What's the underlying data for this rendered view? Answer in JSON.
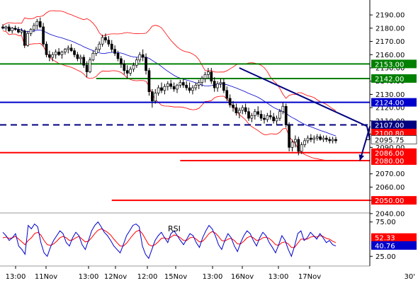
{
  "chart_data": {
    "type": "candlestick",
    "timeframe_label": "30'",
    "price_axis": {
      "ylim": [
        2041,
        2197
      ],
      "ticks": [
        2190,
        2180,
        2170,
        2160,
        2150,
        2140,
        2130,
        2120,
        2110,
        2100,
        2090,
        2070,
        2060,
        2050,
        2040
      ]
    },
    "x_axis_labels": [
      "13:00",
      "11Nov",
      "13:00",
      "12Nov",
      "12:00",
      "15Nov",
      "13:00",
      "16Nov",
      "13:00",
      "17Nov"
    ],
    "levels": [
      {
        "value": 2153.0,
        "label": "2153.00",
        "color": "#008000",
        "style": "solid",
        "from_index": 0
      },
      {
        "value": 2142.0,
        "label": "2142.00",
        "color": "#008000",
        "style": "solid",
        "from_index": 30
      },
      {
        "value": 2124.0,
        "label": "2124.00",
        "color": "#0000cc",
        "style": "solid",
        "from_index": 0
      },
      {
        "value": 2107.0,
        "label": "2107.00",
        "color": "#000080",
        "style": "dashed",
        "from_index": 0
      },
      {
        "value": 2086.0,
        "label": "2086.00",
        "color": "#ff0000",
        "style": "solid",
        "from_index": 0
      },
      {
        "value": 2080.0,
        "label": "2080.00",
        "color": "#ff0000",
        "style": "solid",
        "from_index": 57
      },
      {
        "value": 2050.0,
        "label": "2050.00",
        "color": "#ff0000",
        "style": "solid",
        "from_index": 35
      }
    ],
    "last_price": {
      "value": 2095.75,
      "label": "2095.75"
    },
    "upper_band_label": {
      "value": 2100.8,
      "label": "2100.80"
    },
    "trendline": {
      "from": [
        76,
        2150
      ],
      "to": [
        117,
        2106
      ],
      "color": "#000080"
    },
    "trendline_extension": {
      "from": [
        117,
        2106
      ],
      "to": [
        127,
        2096
      ],
      "color": "#000080"
    },
    "forecast_arrow": {
      "from": [
        118,
        2106
      ],
      "to": [
        125,
        2080
      ],
      "color": "#000080"
    },
    "candles": [
      {
        "o": 2181,
        "h": 2183,
        "l": 2179,
        "c": 2180
      },
      {
        "o": 2180,
        "h": 2182,
        "l": 2178,
        "c": 2181
      },
      {
        "o": 2181,
        "h": 2183,
        "l": 2177,
        "c": 2178
      },
      {
        "o": 2178,
        "h": 2181,
        "l": 2176,
        "c": 2180
      },
      {
        "o": 2180,
        "h": 2182,
        "l": 2178,
        "c": 2179
      },
      {
        "o": 2179,
        "h": 2181,
        "l": 2176,
        "c": 2177
      },
      {
        "o": 2177,
        "h": 2180,
        "l": 2175,
        "c": 2178
      },
      {
        "o": 2178,
        "h": 2179,
        "l": 2165,
        "c": 2167
      },
      {
        "o": 2167,
        "h": 2178,
        "l": 2166,
        "c": 2176
      },
      {
        "o": 2176,
        "h": 2180,
        "l": 2174,
        "c": 2179
      },
      {
        "o": 2179,
        "h": 2184,
        "l": 2177,
        "c": 2182
      },
      {
        "o": 2182,
        "h": 2187,
        "l": 2179,
        "c": 2185
      },
      {
        "o": 2185,
        "h": 2188,
        "l": 2180,
        "c": 2181
      },
      {
        "o": 2181,
        "h": 2184,
        "l": 2166,
        "c": 2168
      },
      {
        "o": 2168,
        "h": 2170,
        "l": 2158,
        "c": 2160
      },
      {
        "o": 2160,
        "h": 2163,
        "l": 2155,
        "c": 2158
      },
      {
        "o": 2158,
        "h": 2162,
        "l": 2155,
        "c": 2160
      },
      {
        "o": 2160,
        "h": 2164,
        "l": 2157,
        "c": 2162
      },
      {
        "o": 2162,
        "h": 2165,
        "l": 2159,
        "c": 2160
      },
      {
        "o": 2160,
        "h": 2163,
        "l": 2157,
        "c": 2162
      },
      {
        "o": 2162,
        "h": 2165,
        "l": 2160,
        "c": 2164
      },
      {
        "o": 2164,
        "h": 2167,
        "l": 2161,
        "c": 2165
      },
      {
        "o": 2165,
        "h": 2168,
        "l": 2162,
        "c": 2163
      },
      {
        "o": 2163,
        "h": 2165,
        "l": 2158,
        "c": 2160
      },
      {
        "o": 2160,
        "h": 2162,
        "l": 2155,
        "c": 2157
      },
      {
        "o": 2157,
        "h": 2160,
        "l": 2153,
        "c": 2158
      },
      {
        "o": 2158,
        "h": 2160,
        "l": 2150,
        "c": 2152
      },
      {
        "o": 2152,
        "h": 2155,
        "l": 2143,
        "c": 2147
      },
      {
        "o": 2147,
        "h": 2158,
        "l": 2146,
        "c": 2156
      },
      {
        "o": 2156,
        "h": 2163,
        "l": 2155,
        "c": 2161
      },
      {
        "o": 2161,
        "h": 2166,
        "l": 2159,
        "c": 2164
      },
      {
        "o": 2164,
        "h": 2170,
        "l": 2162,
        "c": 2168
      },
      {
        "o": 2168,
        "h": 2175,
        "l": 2166,
        "c": 2173
      },
      {
        "o": 2173,
        "h": 2176,
        "l": 2169,
        "c": 2171
      },
      {
        "o": 2171,
        "h": 2174,
        "l": 2166,
        "c": 2168
      },
      {
        "o": 2168,
        "h": 2171,
        "l": 2162,
        "c": 2164
      },
      {
        "o": 2164,
        "h": 2167,
        "l": 2159,
        "c": 2161
      },
      {
        "o": 2161,
        "h": 2163,
        "l": 2155,
        "c": 2157
      },
      {
        "o": 2157,
        "h": 2159,
        "l": 2150,
        "c": 2153
      },
      {
        "o": 2153,
        "h": 2156,
        "l": 2145,
        "c": 2148
      },
      {
        "o": 2148,
        "h": 2152,
        "l": 2142,
        "c": 2146
      },
      {
        "o": 2146,
        "h": 2151,
        "l": 2144,
        "c": 2149
      },
      {
        "o": 2149,
        "h": 2154,
        "l": 2147,
        "c": 2152
      },
      {
        "o": 2152,
        "h": 2158,
        "l": 2150,
        "c": 2156
      },
      {
        "o": 2156,
        "h": 2162,
        "l": 2154,
        "c": 2160
      },
      {
        "o": 2160,
        "h": 2164,
        "l": 2155,
        "c": 2158
      },
      {
        "o": 2158,
        "h": 2161,
        "l": 2145,
        "c": 2148
      },
      {
        "o": 2148,
        "h": 2150,
        "l": 2129,
        "c": 2132
      },
      {
        "o": 2132,
        "h": 2134,
        "l": 2120,
        "c": 2125
      },
      {
        "o": 2125,
        "h": 2134,
        "l": 2123,
        "c": 2131
      },
      {
        "o": 2131,
        "h": 2137,
        "l": 2129,
        "c": 2135
      },
      {
        "o": 2135,
        "h": 2139,
        "l": 2131,
        "c": 2133
      },
      {
        "o": 2133,
        "h": 2138,
        "l": 2130,
        "c": 2136
      },
      {
        "o": 2136,
        "h": 2140,
        "l": 2133,
        "c": 2138
      },
      {
        "o": 2138,
        "h": 2141,
        "l": 2134,
        "c": 2136
      },
      {
        "o": 2136,
        "h": 2139,
        "l": 2132,
        "c": 2134
      },
      {
        "o": 2134,
        "h": 2138,
        "l": 2131,
        "c": 2137
      },
      {
        "o": 2137,
        "h": 2141,
        "l": 2135,
        "c": 2139
      },
      {
        "o": 2139,
        "h": 2142,
        "l": 2135,
        "c": 2137
      },
      {
        "o": 2137,
        "h": 2140,
        "l": 2133,
        "c": 2135
      },
      {
        "o": 2135,
        "h": 2139,
        "l": 2131,
        "c": 2133
      },
      {
        "o": 2133,
        "h": 2137,
        "l": 2130,
        "c": 2135
      },
      {
        "o": 2135,
        "h": 2139,
        "l": 2133,
        "c": 2137
      },
      {
        "o": 2137,
        "h": 2141,
        "l": 2134,
        "c": 2139
      },
      {
        "o": 2139,
        "h": 2144,
        "l": 2136,
        "c": 2142
      },
      {
        "o": 2142,
        "h": 2147,
        "l": 2139,
        "c": 2145
      },
      {
        "o": 2145,
        "h": 2150,
        "l": 2142,
        "c": 2147
      },
      {
        "o": 2147,
        "h": 2150,
        "l": 2138,
        "c": 2140
      },
      {
        "o": 2140,
        "h": 2143,
        "l": 2132,
        "c": 2135
      },
      {
        "o": 2135,
        "h": 2140,
        "l": 2132,
        "c": 2138
      },
      {
        "o": 2138,
        "h": 2142,
        "l": 2135,
        "c": 2139
      },
      {
        "o": 2139,
        "h": 2142,
        "l": 2131,
        "c": 2133
      },
      {
        "o": 2133,
        "h": 2136,
        "l": 2125,
        "c": 2127
      },
      {
        "o": 2127,
        "h": 2130,
        "l": 2120,
        "c": 2122
      },
      {
        "o": 2122,
        "h": 2125,
        "l": 2117,
        "c": 2120
      },
      {
        "o": 2120,
        "h": 2123,
        "l": 2114,
        "c": 2116
      },
      {
        "o": 2116,
        "h": 2120,
        "l": 2112,
        "c": 2118
      },
      {
        "o": 2118,
        "h": 2122,
        "l": 2115,
        "c": 2120
      },
      {
        "o": 2120,
        "h": 2123,
        "l": 2115,
        "c": 2117
      },
      {
        "o": 2117,
        "h": 2120,
        "l": 2110,
        "c": 2112
      },
      {
        "o": 2112,
        "h": 2116,
        "l": 2109,
        "c": 2114
      },
      {
        "o": 2114,
        "h": 2119,
        "l": 2111,
        "c": 2117
      },
      {
        "o": 2117,
        "h": 2121,
        "l": 2113,
        "c": 2115
      },
      {
        "o": 2115,
        "h": 2118,
        "l": 2110,
        "c": 2112
      },
      {
        "o": 2112,
        "h": 2115,
        "l": 2108,
        "c": 2111
      },
      {
        "o": 2111,
        "h": 2116,
        "l": 2109,
        "c": 2114
      },
      {
        "o": 2114,
        "h": 2118,
        "l": 2111,
        "c": 2113
      },
      {
        "o": 2113,
        "h": 2116,
        "l": 2108,
        "c": 2110
      },
      {
        "o": 2110,
        "h": 2114,
        "l": 2107,
        "c": 2112
      },
      {
        "o": 2112,
        "h": 2119,
        "l": 2110,
        "c": 2117
      },
      {
        "o": 2117,
        "h": 2124,
        "l": 2115,
        "c": 2121
      },
      {
        "o": 2121,
        "h": 2123,
        "l": 2105,
        "c": 2107
      },
      {
        "o": 2107,
        "h": 2109,
        "l": 2087,
        "c": 2090
      },
      {
        "o": 2090,
        "h": 2096,
        "l": 2087,
        "c": 2094
      },
      {
        "o": 2094,
        "h": 2099,
        "l": 2090,
        "c": 2096
      },
      {
        "o": 2096,
        "h": 2098,
        "l": 2084,
        "c": 2087
      },
      {
        "o": 2087,
        "h": 2094,
        "l": 2085,
        "c": 2092
      },
      {
        "o": 2092,
        "h": 2097,
        "l": 2090,
        "c": 2095
      },
      {
        "o": 2095,
        "h": 2099,
        "l": 2093,
        "c": 2097
      },
      {
        "o": 2097,
        "h": 2100,
        "l": 2094,
        "c": 2096
      },
      {
        "o": 2096,
        "h": 2099,
        "l": 2093,
        "c": 2097
      },
      {
        "o": 2097,
        "h": 2100,
        "l": 2095,
        "c": 2098
      },
      {
        "o": 2098,
        "h": 2100,
        "l": 2095,
        "c": 2096
      },
      {
        "o": 2096,
        "h": 2099,
        "l": 2094,
        "c": 2097
      },
      {
        "o": 2097,
        "h": 2099,
        "l": 2094,
        "c": 2096
      },
      {
        "o": 2096,
        "h": 2098,
        "l": 2093,
        "c": 2095
      },
      {
        "o": 2095,
        "h": 2098,
        "l": 2093,
        "c": 2096
      },
      {
        "o": 2096,
        "h": 2098,
        "l": 2093,
        "c": 2095
      }
    ],
    "rsi": {
      "label": "RSI",
      "ticks": [
        75.0,
        25.0
      ],
      "ylim": [
        15,
        85
      ],
      "value_labels": [
        {
          "label": "52.33",
          "value": 52.33,
          "color": "#ff0000"
        },
        {
          "label": "40.76",
          "value": 40.76,
          "color": "#0000cc"
        }
      ],
      "fast": [
        60,
        55,
        48,
        52,
        58,
        40,
        35,
        28,
        70,
        65,
        72,
        68,
        45,
        30,
        25,
        38,
        48,
        55,
        62,
        58,
        45,
        40,
        52,
        60,
        55,
        42,
        35,
        48,
        62,
        70,
        75,
        68,
        60,
        55,
        48,
        40,
        35,
        30,
        42,
        55,
        62,
        70,
        72,
        68,
        40,
        28,
        22,
        35,
        48,
        55,
        60,
        52,
        45,
        58,
        62,
        55,
        48,
        42,
        50,
        58,
        55,
        45,
        38,
        52,
        62,
        70,
        65,
        55,
        42,
        35,
        48,
        58,
        52,
        40,
        32,
        45,
        55,
        62,
        58,
        48,
        40,
        52,
        60,
        55,
        45,
        38,
        30,
        42,
        55,
        48,
        35,
        25,
        40,
        58,
        62,
        48,
        52,
        60,
        55,
        50,
        58,
        52,
        45,
        48,
        42,
        40
      ],
      "slow": [
        52,
        53,
        51,
        52,
        54,
        50,
        46,
        42,
        48,
        52,
        58,
        60,
        56,
        48,
        42,
        41,
        43,
        47,
        52,
        54,
        52,
        48,
        49,
        52,
        54,
        50,
        46,
        47,
        52,
        58,
        63,
        65,
        63,
        60,
        56,
        50,
        45,
        40,
        40,
        44,
        50,
        56,
        61,
        63,
        58,
        50,
        42,
        40,
        42,
        46,
        51,
        52,
        50,
        53,
        56,
        55,
        52,
        48,
        48,
        52,
        53,
        50,
        46,
        47,
        52,
        58,
        61,
        59,
        54,
        48,
        47,
        50,
        51,
        48,
        43,
        43,
        47,
        52,
        54,
        52,
        48,
        49,
        52,
        53,
        51,
        47,
        42,
        41,
        45,
        46,
        43,
        38,
        38,
        44,
        50,
        50,
        50,
        53,
        54,
        53,
        55,
        54,
        51,
        50,
        47,
        45
      ]
    }
  }
}
